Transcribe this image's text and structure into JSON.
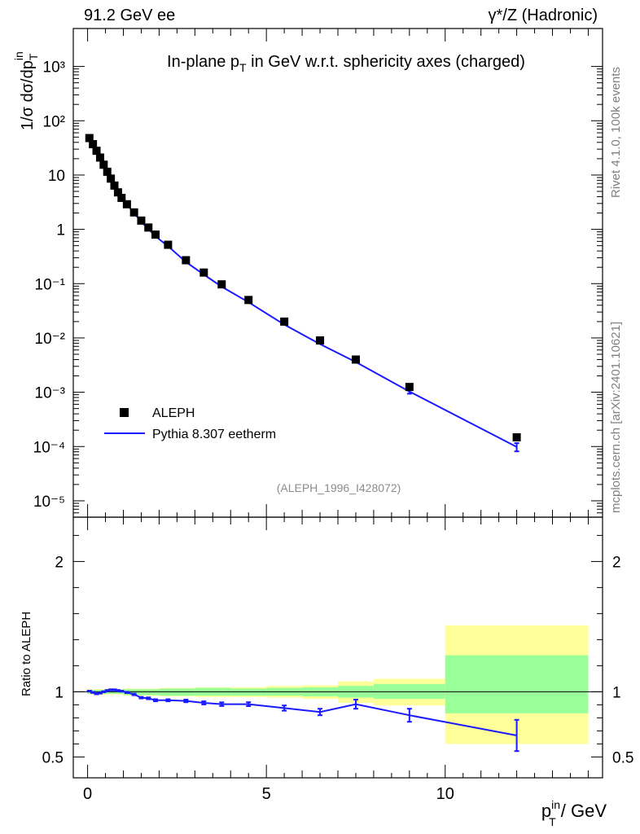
{
  "header": {
    "energy_label": "91.2 GeV ee",
    "process_label": "γ*/Z (Hadronic)"
  },
  "side": {
    "rivet_label": "Rivet 4.1.0,  100k events",
    "mcplots_label": "mcplots.cern.ch [arXiv:2401.10621]"
  },
  "colors": {
    "data": "#000000",
    "mc": "#1a1aff",
    "band_inner": "#99ff99",
    "band_outer": "#ffff99"
  },
  "chart_data": [
    {
      "type": "scatter",
      "title": "In-plane p_T in GeV w.r.t. sphericity axes (charged)",
      "title_main": "In-plane p",
      "title_sub": "T",
      "title_rest": " in GeV w.r.t. sphericity axes (charged)",
      "ylabel": "1/σ  dσ/dp_T^in",
      "ylabel_main": "1/σ  dσ/dp",
      "ylabel_sub": "T",
      "ylabel_sup": "in",
      "yscale": "log",
      "xlim": [
        -0.4,
        14.4
      ],
      "ylim": [
        5e-06,
        5000
      ],
      "y_tick_labels": [
        "10⁻⁵",
        "10⁻⁴",
        "10⁻³",
        "10⁻²",
        "10⁻¹",
        "1",
        "10",
        "10²",
        "10³"
      ],
      "y_tick_values": [
        1e-05,
        0.0001,
        0.001,
        0.01,
        0.1,
        1,
        10,
        100,
        1000
      ],
      "annotation": "(ALEPH_1996_I428072)",
      "legend": {
        "position": "bottom-left",
        "data_label": "ALEPH",
        "mc_label": "Pythia 8.307 eetherm"
      },
      "series": [
        {
          "name": "ALEPH",
          "x": [
            0.05,
            0.15,
            0.25,
            0.35,
            0.45,
            0.55,
            0.65,
            0.75,
            0.85,
            0.95,
            1.1,
            1.3,
            1.5,
            1.7,
            1.9,
            2.25,
            2.75,
            3.25,
            3.75,
            4.5,
            5.5,
            6.5,
            7.5,
            9.0,
            12.0
          ],
          "y": [
            48,
            37,
            28,
            21,
            15.5,
            11.5,
            8.6,
            6.4,
            4.8,
            3.8,
            2.9,
            2.05,
            1.45,
            1.08,
            0.8,
            0.52,
            0.27,
            0.16,
            0.097,
            0.05,
            0.02,
            0.009,
            0.004,
            0.00125,
            0.000148
          ]
        },
        {
          "name": "Pythia 8.307 eetherm",
          "x": [
            0.05,
            0.15,
            0.25,
            0.35,
            0.45,
            0.55,
            0.65,
            0.75,
            0.85,
            0.95,
            1.1,
            1.3,
            1.5,
            1.7,
            1.9,
            2.25,
            2.75,
            3.25,
            3.75,
            4.5,
            5.5,
            6.5,
            7.5,
            9.0,
            12.0
          ],
          "y": [
            48.5,
            36.5,
            27.5,
            21.2,
            15.7,
            11.7,
            8.75,
            6.5,
            4.85,
            3.82,
            2.88,
            2.0,
            1.38,
            1.02,
            0.74,
            0.49,
            0.25,
            0.147,
            0.088,
            0.0455,
            0.0176,
            0.0077,
            0.0036,
            0.00103,
            9.85e-05
          ],
          "yerr": [
            0,
            0,
            0,
            0,
            0,
            0,
            0,
            0,
            0,
            0,
            0,
            0,
            0,
            0,
            0,
            0,
            0,
            0,
            0,
            0,
            0,
            0,
            0,
            9e-05,
            1.7e-05
          ]
        }
      ]
    },
    {
      "type": "line",
      "ylabel": "Ratio to ALEPH",
      "xlabel": "p_T^in / GeV",
      "xlabel_main": "p",
      "xlabel_sub": "T",
      "xlabel_sup": "in",
      "xlabel_rest": " / GeV",
      "xlim": [
        -0.4,
        14.4
      ],
      "ylim": [
        0.34,
        2.34
      ],
      "x_tick_labels": [
        "0",
        "5",
        "10"
      ],
      "x_tick_values": [
        0,
        5,
        10
      ],
      "y_tick_labels": [
        "0.5",
        "1",
        "2"
      ],
      "y_tick_values": [
        0.5,
        1,
        2
      ],
      "series": [
        {
          "name": "Pythia 8.307 eetherm / ALEPH",
          "x": [
            0.05,
            0.15,
            0.25,
            0.35,
            0.45,
            0.55,
            0.65,
            0.75,
            0.85,
            0.95,
            1.1,
            1.3,
            1.5,
            1.7,
            1.9,
            2.25,
            2.75,
            3.25,
            3.75,
            4.5,
            5.5,
            6.5,
            7.5,
            9.0,
            12.0
          ],
          "y": [
            1.005,
            0.995,
            0.985,
            0.99,
            1.0,
            1.01,
            1.015,
            1.015,
            1.01,
            1.005,
            0.995,
            0.98,
            0.955,
            0.95,
            0.935,
            0.935,
            0.93,
            0.915,
            0.905,
            0.905,
            0.875,
            0.845,
            0.905,
            0.82,
            0.665
          ],
          "yerr": [
            0.004,
            0.004,
            0.004,
            0.004,
            0.004,
            0.004,
            0.004,
            0.004,
            0.004,
            0.004,
            0.005,
            0.006,
            0.006,
            0.007,
            0.008,
            0.008,
            0.01,
            0.012,
            0.014,
            0.015,
            0.02,
            0.025,
            0.035,
            0.05,
            0.12
          ]
        }
      ],
      "uncertainty_bands": [
        {
          "x_range": [
            0.0,
            1.0
          ],
          "inner": [
            0.985,
            1.015
          ],
          "outer": [
            0.98,
            1.02
          ]
        },
        {
          "x_range": [
            1.0,
            2.0
          ],
          "inner": [
            0.975,
            1.02
          ],
          "outer": [
            0.97,
            1.025
          ]
        },
        {
          "x_range": [
            2.0,
            3.0
          ],
          "inner": [
            0.97,
            1.025
          ],
          "outer": [
            0.965,
            1.03
          ]
        },
        {
          "x_range": [
            3.0,
            4.0
          ],
          "inner": [
            0.97,
            1.03
          ],
          "outer": [
            0.96,
            1.035
          ]
        },
        {
          "x_range": [
            4.0,
            5.0
          ],
          "inner": [
            0.97,
            1.025
          ],
          "outer": [
            0.96,
            1.035
          ]
        },
        {
          "x_range": [
            5.0,
            6.0
          ],
          "inner": [
            0.97,
            1.03
          ],
          "outer": [
            0.955,
            1.045
          ]
        },
        {
          "x_range": [
            6.0,
            7.0
          ],
          "inner": [
            0.965,
            1.035
          ],
          "outer": [
            0.945,
            1.05
          ]
        },
        {
          "x_range": [
            7.0,
            8.0
          ],
          "inner": [
            0.955,
            1.045
          ],
          "outer": [
            0.915,
            1.08
          ]
        },
        {
          "x_range": [
            8.0,
            10.0
          ],
          "inner": [
            0.945,
            1.06
          ],
          "outer": [
            0.895,
            1.1
          ]
        },
        {
          "x_range": [
            10.0,
            14.0
          ],
          "inner": [
            0.835,
            1.28
          ],
          "outer": [
            0.6,
            1.51
          ]
        }
      ]
    }
  ]
}
